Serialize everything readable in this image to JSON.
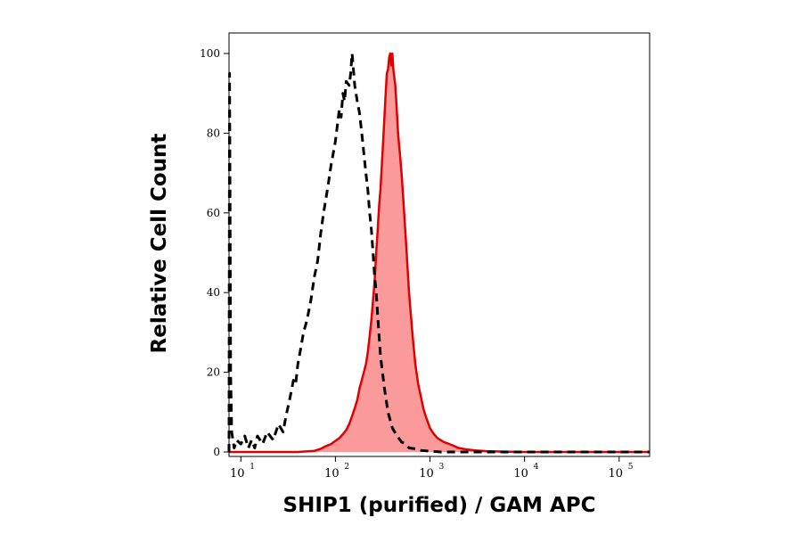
{
  "chart_data": {
    "type": "area",
    "title": "",
    "xlabel": "SHIP1 (purified) / GAM APC",
    "ylabel": "Relative Cell Count",
    "x_scale": "log",
    "xlim": [
      7.5,
      210000
    ],
    "ylim": [
      0,
      105
    ],
    "grid": false,
    "legend": "none",
    "x_ticks": [
      {
        "value": 10,
        "base": "10",
        "exp": "1"
      },
      {
        "value": 100,
        "base": "10",
        "exp": "2"
      },
      {
        "value": 1000,
        "base": "10",
        "exp": "3"
      },
      {
        "value": 10000,
        "base": "10",
        "exp": "4"
      },
      {
        "value": 100000,
        "base": "10",
        "exp": "5"
      }
    ],
    "y_ticks": [
      {
        "value": 0,
        "label": "0"
      },
      {
        "value": 20,
        "label": "20"
      },
      {
        "value": 40,
        "label": "40"
      },
      {
        "value": 60,
        "label": "60"
      },
      {
        "value": 80,
        "label": "80"
      },
      {
        "value": 100,
        "label": "100"
      }
    ],
    "series": [
      {
        "style": "dashed",
        "color": "#000000",
        "fill": "none",
        "x": [
          7.5,
          7.6,
          7.7,
          7.8,
          8,
          8.5,
          9,
          10,
          11,
          12,
          13,
          14,
          15,
          17,
          19,
          22,
          25,
          28,
          30,
          32,
          34,
          36,
          38,
          40,
          43,
          46,
          50,
          55,
          60,
          65,
          70,
          75,
          80,
          85,
          90,
          95,
          100,
          105,
          110,
          115,
          120,
          125,
          130,
          140,
          145,
          150,
          155,
          160,
          170,
          180,
          190,
          200,
          210,
          220,
          230,
          240,
          250,
          260,
          270,
          280,
          300,
          330,
          360,
          400,
          450,
          500,
          550,
          600,
          700,
          800,
          1000,
          1300,
          1800,
          3000,
          10000,
          100000,
          210000
        ],
        "y": [
          0,
          95,
          60,
          20,
          5,
          1,
          3,
          2,
          4,
          1,
          3,
          1,
          4,
          2,
          5,
          3,
          7,
          5,
          9,
          12,
          15,
          18,
          17,
          22,
          26,
          30,
          33,
          38,
          44,
          48,
          55,
          60,
          64,
          68,
          72,
          75,
          78,
          82,
          86,
          84,
          90,
          88,
          93,
          92,
          95,
          100,
          96,
          92,
          88,
          85,
          80,
          75,
          70,
          66,
          60,
          56,
          50,
          44,
          40,
          34,
          24,
          16,
          10,
          6,
          4,
          2.5,
          2,
          1,
          0.8,
          0.4,
          0.2,
          0,
          0,
          0,
          0,
          0,
          0
        ]
      },
      {
        "style": "solid",
        "color": "#e00000",
        "fill": "#fa9a9a",
        "x": [
          7.5,
          40,
          60,
          70,
          80,
          90,
          100,
          110,
          120,
          130,
          140,
          150,
          160,
          170,
          180,
          190,
          200,
          210,
          220,
          230,
          240,
          250,
          260,
          270,
          280,
          290,
          300,
          310,
          320,
          330,
          340,
          350,
          360,
          370,
          380,
          390,
          400,
          410,
          420,
          430,
          440,
          450,
          460,
          480,
          500,
          520,
          540,
          560,
          580,
          600,
          620,
          650,
          680,
          700,
          750,
          800,
          850,
          900,
          1000,
          1100,
          1200,
          1400,
          1600,
          1800,
          2000,
          2500,
          3000,
          4000,
          6000,
          10000,
          100000,
          210000
        ],
        "y": [
          0,
          0,
          0.3,
          0.8,
          1.5,
          2,
          2.8,
          3.5,
          4.5,
          5.5,
          7,
          9,
          11,
          13,
          16,
          18,
          20,
          22,
          25,
          29,
          33,
          38,
          43,
          50,
          56,
          62,
          66,
          72,
          78,
          84,
          90,
          95,
          96,
          99,
          100,
          97,
          100,
          96,
          94,
          92,
          88,
          84,
          80,
          75,
          70,
          64,
          58,
          52,
          46,
          40,
          36,
          30,
          25,
          22,
          17,
          14,
          11,
          9,
          6,
          4.5,
          3.5,
          2.5,
          2,
          1.5,
          1,
          0.6,
          0.4,
          0.2,
          0.1,
          0,
          0,
          0
        ]
      }
    ]
  }
}
